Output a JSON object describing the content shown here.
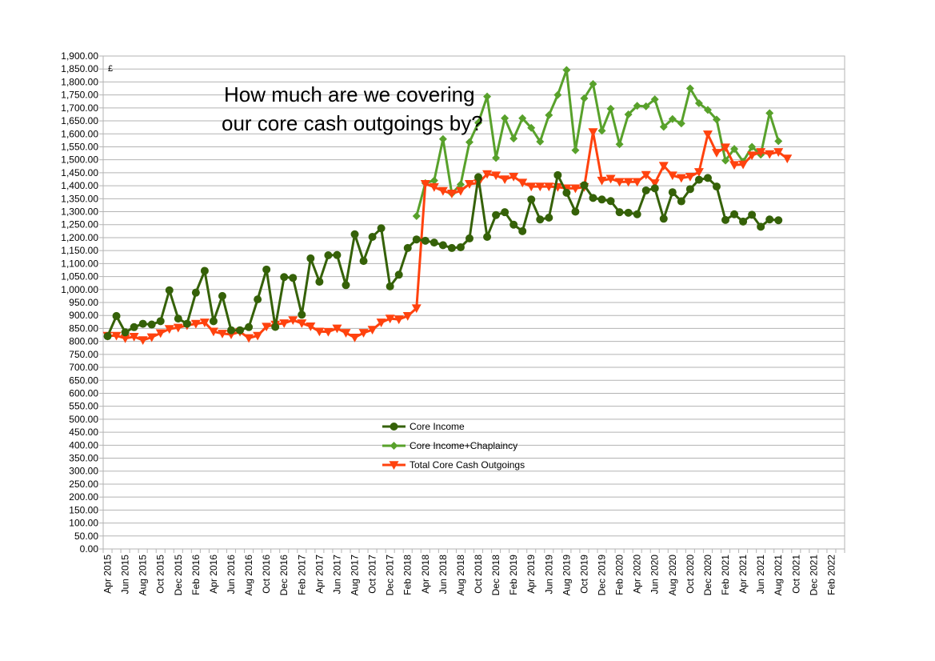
{
  "chart_data": {
    "type": "line",
    "title_lines": [
      "How much are we covering",
      "our core cash outgoings by?"
    ],
    "unit_label": "£",
    "ylim": [
      0,
      1900
    ],
    "ytick_step": 50,
    "grid": true,
    "legend_position": "center",
    "months": [
      "Apr 2015",
      "May 2015",
      "Jun 2015",
      "Jul 2015",
      "Aug 2015",
      "Sep 2015",
      "Oct 2015",
      "Nov 2015",
      "Dec 2015",
      "Jan 2016",
      "Feb 2016",
      "Mar 2016",
      "Apr 2016",
      "May 2016",
      "Jun 2016",
      "Jul 2016",
      "Aug 2016",
      "Sep 2016",
      "Oct 2016",
      "Nov 2016",
      "Dec 2016",
      "Jan 2017",
      "Feb 2017",
      "Mar 2017",
      "Apr 2017",
      "May 2017",
      "Jun 2017",
      "Jul 2017",
      "Aug 2017",
      "Sep 2017",
      "Oct 2017",
      "Nov 2017",
      "Dec 2017",
      "Jan 2018",
      "Feb 2018",
      "Mar 2018",
      "Apr 2018",
      "May 2018",
      "Jun 2018",
      "Jul 2018",
      "Aug 2018",
      "Sep 2018",
      "Oct 2018",
      "Nov 2018",
      "Dec 2018",
      "Jan 2019",
      "Feb 2019",
      "Mar 2019",
      "Apr 2019",
      "May 2019",
      "Jun 2019",
      "Jul 2019",
      "Aug 2019",
      "Sep 2019",
      "Oct 2019",
      "Nov 2019",
      "Dec 2019",
      "Jan 2020",
      "Feb 2020",
      "Mar 2020",
      "Apr 2020",
      "May 2020",
      "Jun 2020",
      "Jul 2020",
      "Aug 2020",
      "Sep 2020",
      "Oct 2020",
      "Nov 2020",
      "Dec 2020",
      "Jan 2021",
      "Feb 2021",
      "Mar 2021",
      "Apr 2021",
      "May 2021",
      "Jun 2021",
      "Jul 2021",
      "Aug 2021",
      "Sep 2021",
      "Oct 2021",
      "Nov 2021",
      "Dec 2021",
      "Jan 2022",
      "Feb 2022",
      "Mar 2022"
    ],
    "x_tick_labels": [
      "Apr 2015",
      "Jun 2015",
      "Aug 2015",
      "Oct 2015",
      "Dec 2015",
      "Feb 2016",
      "Apr 2016",
      "Jun 2016",
      "Aug 2016",
      "Oct 2016",
      "Dec 2016",
      "Feb 2017",
      "Apr 2017",
      "Jun 2017",
      "Aug 2017",
      "Oct 2017",
      "Dec 2017",
      "Feb 2018",
      "Apr 2018",
      "Jun 2018",
      "Aug 2018",
      "Oct 2018",
      "Dec 2018",
      "Feb 2019",
      "Apr 2019",
      "Jun 2019",
      "Aug 2019",
      "Oct 2019",
      "Dec 2019",
      "Feb 2020",
      "Apr 2020",
      "Jun 2020",
      "Aug 2020",
      "Oct 2020",
      "Dec 2020",
      "Feb 2021",
      "Apr 2021",
      "Jun 2021",
      "Aug 2021",
      "Oct 2021",
      "Dec 2021",
      "Feb 2022"
    ],
    "y_tick_labels": [
      "0.00",
      "50.00",
      "100.00",
      "150.00",
      "200.00",
      "250.00",
      "300.00",
      "350.00",
      "400.00",
      "450.00",
      "500.00",
      "550.00",
      "600.00",
      "650.00",
      "700.00",
      "750.00",
      "800.00",
      "850.00",
      "900.00",
      "950.00",
      "1,000.00",
      "1,050.00",
      "1,100.00",
      "1,150.00",
      "1,200.00",
      "1,250.00",
      "1,300.00",
      "1,350.00",
      "1,400.00",
      "1,450.00",
      "1,500.00",
      "1,550.00",
      "1,600.00",
      "1,650.00",
      "1,700.00",
      "1,750.00",
      "1,800.00",
      "1,850.00",
      "1,900.00"
    ],
    "series": [
      {
        "name": "Core Income",
        "color": "#356108",
        "marker": "circle",
        "start_index": 0,
        "values": [
          820,
          898,
          835,
          855,
          868,
          865,
          878,
          997,
          888,
          868,
          988,
          1072,
          878,
          975,
          843,
          843,
          855,
          962,
          1077,
          856,
          1048,
          1045,
          903,
          1120,
          1030,
          1132,
          1133,
          1017,
          1213,
          1110,
          1203,
          1236,
          1012,
          1057,
          1160,
          1193,
          1188,
          1181,
          1171,
          1160,
          1163,
          1197,
          1433,
          1203,
          1287,
          1298,
          1250,
          1225,
          1347,
          1270,
          1277,
          1441,
          1373,
          1300,
          1402,
          1353,
          1347,
          1341,
          1298,
          1296,
          1290,
          1382,
          1390,
          1273,
          1375,
          1340,
          1387,
          1423,
          1430,
          1397,
          1268,
          1290,
          1262,
          1288,
          1242,
          1270,
          1267
        ]
      },
      {
        "name": "Core Income+Chaplaincy",
        "color": "#58a12b",
        "marker": "diamond",
        "start_index": 35,
        "values": [
          1283,
          1410,
          1420,
          1580,
          1370,
          1405,
          1568,
          1643,
          1744,
          1507,
          1660,
          1582,
          1660,
          1623,
          1570,
          1672,
          1750,
          1846,
          1537,
          1737,
          1792,
          1612,
          1697,
          1560,
          1675,
          1708,
          1706,
          1733,
          1627,
          1657,
          1640,
          1775,
          1718,
          1692,
          1655,
          1497,
          1542,
          1493,
          1550,
          1520,
          1680,
          1572
        ]
      },
      {
        "name": "Total Core Cash Outgoings",
        "color": "#ff420e",
        "marker": "triangle-down",
        "start_index": 0,
        "values": [
          822,
          822,
          812,
          818,
          805,
          816,
          832,
          848,
          853,
          862,
          868,
          873,
          838,
          830,
          827,
          837,
          813,
          822,
          857,
          865,
          870,
          882,
          870,
          858,
          838,
          837,
          850,
          833,
          815,
          833,
          845,
          873,
          888,
          885,
          898,
          928,
          1407,
          1395,
          1380,
          1370,
          1380,
          1407,
          1410,
          1445,
          1440,
          1425,
          1435,
          1412,
          1397,
          1397,
          1397,
          1395,
          1390,
          1390,
          1395,
          1607,
          1420,
          1427,
          1415,
          1415,
          1415,
          1442,
          1410,
          1477,
          1440,
          1430,
          1435,
          1453,
          1598,
          1527,
          1548,
          1480,
          1482,
          1517,
          1530,
          1522,
          1530,
          1505
        ]
      }
    ]
  }
}
